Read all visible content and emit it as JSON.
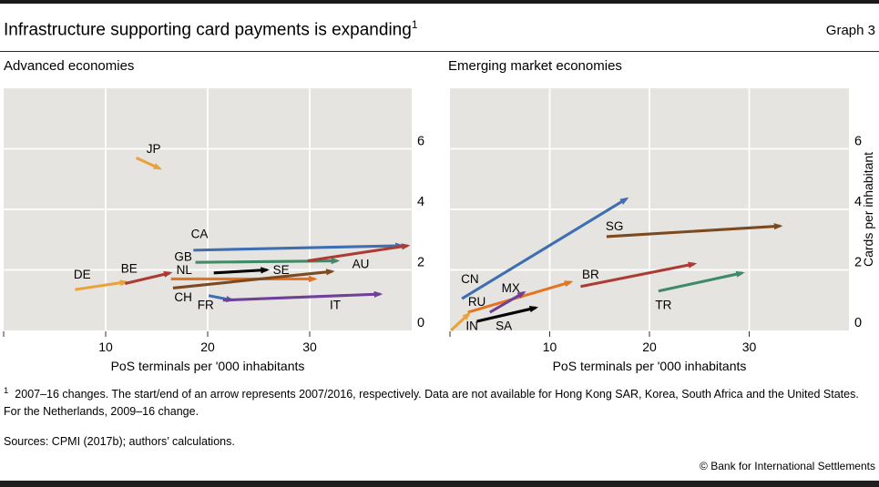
{
  "header": {
    "title": "Infrastructure supporting card payments is expanding",
    "title_sup": "1",
    "graph_label": "Graph 3"
  },
  "chart_data": [
    {
      "type": "arrow-scatter",
      "title": "Advanced economies",
      "xlabel": "PoS terminals per '000 inhabitants",
      "ylabel": "",
      "xlim": [
        0,
        40
      ],
      "ylim": [
        0,
        8
      ],
      "xticks": [
        0,
        10,
        20,
        30
      ],
      "xtick_labels": [
        "",
        "10",
        "20",
        "30"
      ],
      "yticks": [
        0,
        2,
        4,
        6
      ],
      "grid": true,
      "plot_bg": "#E6E4E1",
      "grid_color": "#FFFFFF",
      "series": [
        {
          "code": "JP",
          "color": "#E9A33D",
          "from": [
            13.0,
            5.7
          ],
          "to": [
            15.3,
            5.35
          ],
          "label_at": [
            14.7,
            6.0
          ]
        },
        {
          "code": "DE",
          "color": "#E9A33D",
          "from": [
            7.0,
            1.35
          ],
          "to": [
            12.0,
            1.6
          ],
          "label_at": [
            7.7,
            1.85
          ]
        },
        {
          "code": "BE",
          "color": "#AC3B34",
          "from": [
            11.9,
            1.55
          ],
          "to": [
            16.3,
            1.9
          ],
          "label_at": [
            12.3,
            2.05
          ]
        },
        {
          "code": "CA",
          "color": "#3E6FB0",
          "from": [
            18.6,
            2.65
          ],
          "to": [
            39.0,
            2.8
          ],
          "label_at": [
            19.2,
            3.2
          ]
        },
        {
          "code": "GB",
          "color": "#3F8A68",
          "from": [
            18.8,
            2.25
          ],
          "to": [
            32.7,
            2.3
          ],
          "label_at": [
            17.6,
            2.45
          ]
        },
        {
          "code": "NL",
          "color": "#E67320",
          "from": [
            16.4,
            1.7
          ],
          "to": [
            30.5,
            1.7
          ],
          "label_at": [
            17.7,
            2.0
          ]
        },
        {
          "code": "SE",
          "color": "#000000",
          "from": [
            20.6,
            1.9
          ],
          "to": [
            25.8,
            2.0
          ],
          "label_at": [
            27.2,
            2.0
          ]
        },
        {
          "code": "AU",
          "color": "#AC3B34",
          "from": [
            29.8,
            2.3
          ],
          "to": [
            39.6,
            2.8
          ],
          "label_at": [
            35.0,
            2.2
          ]
        },
        {
          "code": "CH",
          "color": "#7C4A21",
          "from": [
            16.6,
            1.4
          ],
          "to": [
            32.2,
            1.95
          ],
          "label_at": [
            17.6,
            1.1
          ]
        },
        {
          "code": "FR",
          "color": "#3E6FB0",
          "from": [
            20.1,
            1.15
          ],
          "to": [
            22.4,
            1.0
          ],
          "label_at": [
            19.8,
            0.85
          ]
        },
        {
          "code": "IT",
          "color": "#6F4098",
          "from": [
            21.5,
            1.0
          ],
          "to": [
            36.9,
            1.2
          ],
          "label_at": [
            32.5,
            0.85
          ]
        }
      ]
    },
    {
      "type": "arrow-scatter",
      "title": "Emerging market economies",
      "xlabel": "PoS terminals per '000 inhabitants",
      "ylabel": "Cards per inhabitant",
      "xlim": [
        0,
        40
      ],
      "ylim": [
        0,
        8
      ],
      "xticks": [
        0,
        10,
        20,
        30
      ],
      "xtick_labels": [
        "",
        "10",
        "20",
        "30"
      ],
      "yticks": [
        0,
        2,
        4,
        6
      ],
      "grid": true,
      "plot_bg": "#E6E4E1",
      "grid_color": "#FFFFFF",
      "series": [
        {
          "code": "CN",
          "color": "#3E6FB0",
          "from": [
            1.2,
            1.05
          ],
          "to": [
            17.7,
            4.35
          ],
          "label_at": [
            2.0,
            1.7
          ]
        },
        {
          "code": "RU",
          "color": "#E67320",
          "from": [
            1.8,
            0.6
          ],
          "to": [
            12.1,
            1.6
          ],
          "label_at": [
            2.7,
            0.95
          ]
        },
        {
          "code": "MX",
          "color": "#6F4098",
          "from": [
            4.0,
            0.6
          ],
          "to": [
            7.4,
            1.25
          ],
          "label_at": [
            6.1,
            1.4
          ]
        },
        {
          "code": "IN",
          "color": "#E9A33D",
          "from": [
            0.1,
            0.0
          ],
          "to": [
            1.9,
            0.55
          ],
          "label_at": [
            2.2,
            0.15
          ]
        },
        {
          "code": "SA",
          "color": "#000000",
          "from": [
            2.7,
            0.3
          ],
          "to": [
            8.6,
            0.75
          ],
          "label_at": [
            5.4,
            0.15
          ]
        },
        {
          "code": "BR",
          "color": "#AC3B34",
          "from": [
            13.1,
            1.45
          ],
          "to": [
            24.5,
            2.2
          ],
          "label_at": [
            14.1,
            1.85
          ]
        },
        {
          "code": "SG",
          "color": "#7C4A21",
          "from": [
            15.7,
            3.1
          ],
          "to": [
            33.1,
            3.45
          ],
          "label_at": [
            16.5,
            3.45
          ]
        },
        {
          "code": "TR",
          "color": "#3F8A68",
          "from": [
            20.9,
            1.3
          ],
          "to": [
            29.3,
            1.9
          ],
          "label_at": [
            21.4,
            0.85
          ]
        }
      ]
    }
  ],
  "footnote": {
    "marker": "1",
    "text": "2007–16 changes. The start/end of an arrow represents 2007/2016, respectively. Data are not available for Hong Kong SAR, Korea, South Africa and the United States. For the Netherlands, 2009–16 change."
  },
  "sources": "Sources: CPMI (2017b); authors’ calculations.",
  "copyright": "© Bank for International Settlements"
}
